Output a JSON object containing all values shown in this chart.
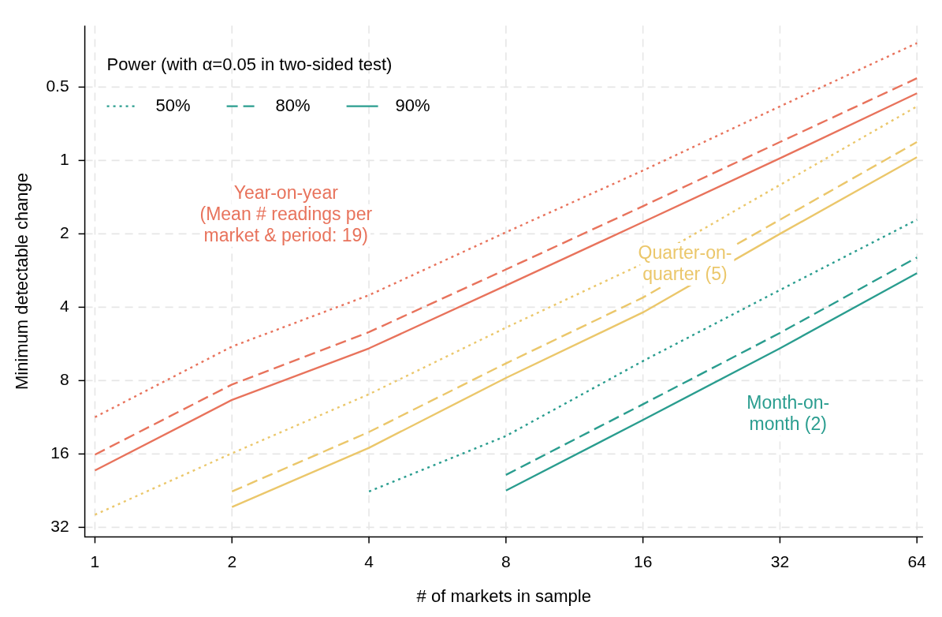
{
  "chart_data": {
    "type": "line",
    "xlabel": "# of markets in sample",
    "ylabel": "Minimum detectable change",
    "legend_title": "Power (with α=0.05 in two-sided test)",
    "x": [
      1,
      2,
      4,
      8,
      16,
      32,
      64
    ],
    "series": [
      {
        "color": "#e8735c",
        "line_style": "dotted",
        "values": [
          11.3,
          5.8,
          3.57,
          1.97,
          1.1,
          0.6,
          0.33
        ]
      },
      {
        "color": "#e8735c",
        "line_style": "dashed",
        "values": [
          16.1,
          8.3,
          5.06,
          2.8,
          1.54,
          0.84,
          0.46
        ]
      },
      {
        "color": "#e8735c",
        "line_style": "solid",
        "values": [
          18.7,
          9.6,
          5.9,
          3.26,
          1.79,
          0.98,
          0.53
        ]
      },
      {
        "color": "#ebc76b",
        "line_style": "dotted",
        "values": [
          28.4,
          15.9,
          9.1,
          4.85,
          2.65,
          1.26,
          0.6
        ]
      },
      {
        "color": "#ebc76b",
        "line_style": "dashed",
        "values": [
          null,
          22.8,
          13,
          6.8,
          3.65,
          1.75,
          0.84
        ]
      },
      {
        "color": "#ebc76b",
        "line_style": "solid",
        "values": [
          null,
          26.4,
          15.1,
          7.8,
          4.2,
          2.0,
          0.97
        ]
      },
      {
        "name": "50%",
        "color": "#2a9d8f",
        "line_style": "dotted",
        "values": [
          null,
          null,
          22.8,
          13.5,
          6.65,
          3.4,
          1.75
        ]
      },
      {
        "name": "80%",
        "color": "#2a9d8f",
        "line_style": "dashed",
        "values": [
          null,
          null,
          null,
          19.5,
          10,
          5.1,
          2.5
        ]
      },
      {
        "name": "90%",
        "color": "#2a9d8f",
        "line_style": "solid",
        "values": [
          null,
          null,
          null,
          22.6,
          11.6,
          5.9,
          2.9
        ]
      }
    ],
    "log": "xy",
    "xlim": [
      0.95,
      66
    ],
    "xticks": [
      1,
      2,
      4,
      8,
      16,
      32,
      64
    ],
    "ylim": [
      35,
      0.28
    ],
    "yticks": [
      0.5,
      1,
      2,
      4,
      8,
      16,
      32
    ],
    "grid": true,
    "legend": "top left",
    "marker": "none",
    "annotations": [
      "Year-on-year\n(Mean # readings per\nmarket & period: 19)",
      "Quarter-on-\nquarter (5)",
      "Month-on-\nmonth (2)"
    ]
  }
}
